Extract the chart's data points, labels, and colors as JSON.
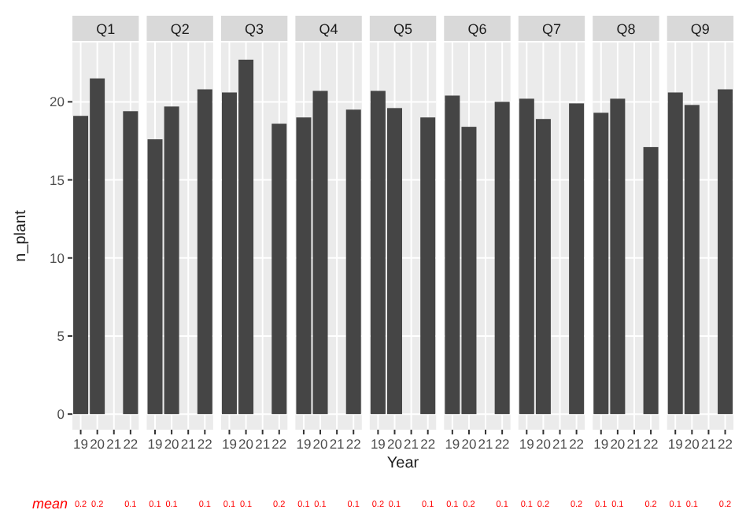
{
  "chart_data": [
    {
      "type": "bar",
      "title": "Q1",
      "ylabel": "n_plant",
      "categories": [
        "19",
        "20",
        "21",
        "22"
      ],
      "values": [
        19.1,
        21.5,
        null,
        19.4
      ],
      "color": "#454545",
      "ylim": [
        -1.0,
        23.8
      ],
      "yticks": [
        0,
        5,
        10,
        15,
        20
      ],
      "grid": true,
      "annotations": [
        "mean",
        "0.2",
        "0.2",
        "0.1"
      ]
    },
    {
      "type": "bar",
      "title": "Q2",
      "categories": [
        "19",
        "20",
        "21",
        "22"
      ],
      "values": [
        17.6,
        19.7,
        null,
        20.8
      ],
      "color": "#454545",
      "ylim": [
        -1.0,
        23.8
      ],
      "yticks": [
        0,
        5,
        10,
        15,
        20
      ],
      "grid": true,
      "tick_labels": "x",
      "annotations": [
        "0.1",
        "0.1",
        "0.1"
      ]
    },
    {
      "type": "bar",
      "title": "Q3",
      "categories": [
        "19",
        "20",
        "21",
        "22"
      ],
      "values": [
        20.6,
        22.7,
        null,
        18.6
      ],
      "color": "#454545",
      "ylim": [
        -1.0,
        23.8
      ],
      "yticks": [
        0,
        5,
        10,
        15,
        20
      ],
      "grid": true,
      "tick_labels": "x",
      "annotations": [
        "0.1",
        "0.1",
        "0.2"
      ]
    },
    {
      "type": "bar",
      "title": "Q4",
      "categories": [
        "19",
        "20",
        "21",
        "22"
      ],
      "values": [
        19.0,
        20.7,
        null,
        19.5
      ],
      "color": "#454545",
      "ylim": [
        -1.0,
        23.8
      ],
      "yticks": [
        0,
        5,
        10,
        15,
        20
      ],
      "grid": true,
      "tick_labels": "x",
      "annotations": [
        "0.1",
        "0.1",
        "0.1"
      ]
    },
    {
      "type": "bar",
      "title": "Q5",
      "xlabel": "Year",
      "categories": [
        "19",
        "20",
        "21",
        "22"
      ],
      "values": [
        20.7,
        19.6,
        null,
        19.0
      ],
      "color": "#454545",
      "ylim": [
        -1.0,
        23.8
      ],
      "yticks": [
        0,
        5,
        10,
        15,
        20
      ],
      "grid": true,
      "tick_labels": "x",
      "annotations": [
        "0.2",
        "0.1",
        "0.1"
      ]
    },
    {
      "type": "bar",
      "title": "Q6",
      "categories": [
        "19",
        "20",
        "21",
        "22"
      ],
      "values": [
        20.4,
        18.4,
        null,
        20.0
      ],
      "color": "#454545",
      "ylim": [
        -1.0,
        23.8
      ],
      "yticks": [
        0,
        5,
        10,
        15,
        20
      ],
      "grid": true,
      "tick_labels": "x",
      "annotations": [
        "0.1",
        "0.2",
        "0.1"
      ]
    },
    {
      "type": "bar",
      "title": "Q7",
      "categories": [
        "19",
        "20",
        "21",
        "22"
      ],
      "values": [
        20.2,
        18.9,
        null,
        19.9
      ],
      "color": "#454545",
      "ylim": [
        -1.0,
        23.8
      ],
      "yticks": [
        0,
        5,
        10,
        15,
        20
      ],
      "grid": true,
      "tick_labels": "x",
      "annotations": [
        "0.1",
        "0.2",
        "0.2"
      ]
    },
    {
      "type": "bar",
      "title": "Q8",
      "categories": [
        "19",
        "20",
        "21",
        "22"
      ],
      "values": [
        19.3,
        20.2,
        null,
        17.1
      ],
      "color": "#454545",
      "ylim": [
        -1.0,
        23.8
      ],
      "yticks": [
        0,
        5,
        10,
        15,
        20
      ],
      "grid": true,
      "tick_labels": "x",
      "annotations": [
        "0.1",
        "0.1",
        "0.2"
      ]
    },
    {
      "type": "bar",
      "title": "Q9",
      "categories": [
        "19",
        "20",
        "21",
        "22"
      ],
      "values": [
        20.6,
        19.8,
        null,
        20.8
      ],
      "color": "#454545",
      "ylim": [
        -1.0,
        23.8
      ],
      "yticks": [
        0,
        5,
        10,
        15,
        20
      ],
      "grid": true,
      "tick_labels": "x",
      "annotations": [
        "0.1",
        "0.1",
        "0.2"
      ]
    }
  ]
}
